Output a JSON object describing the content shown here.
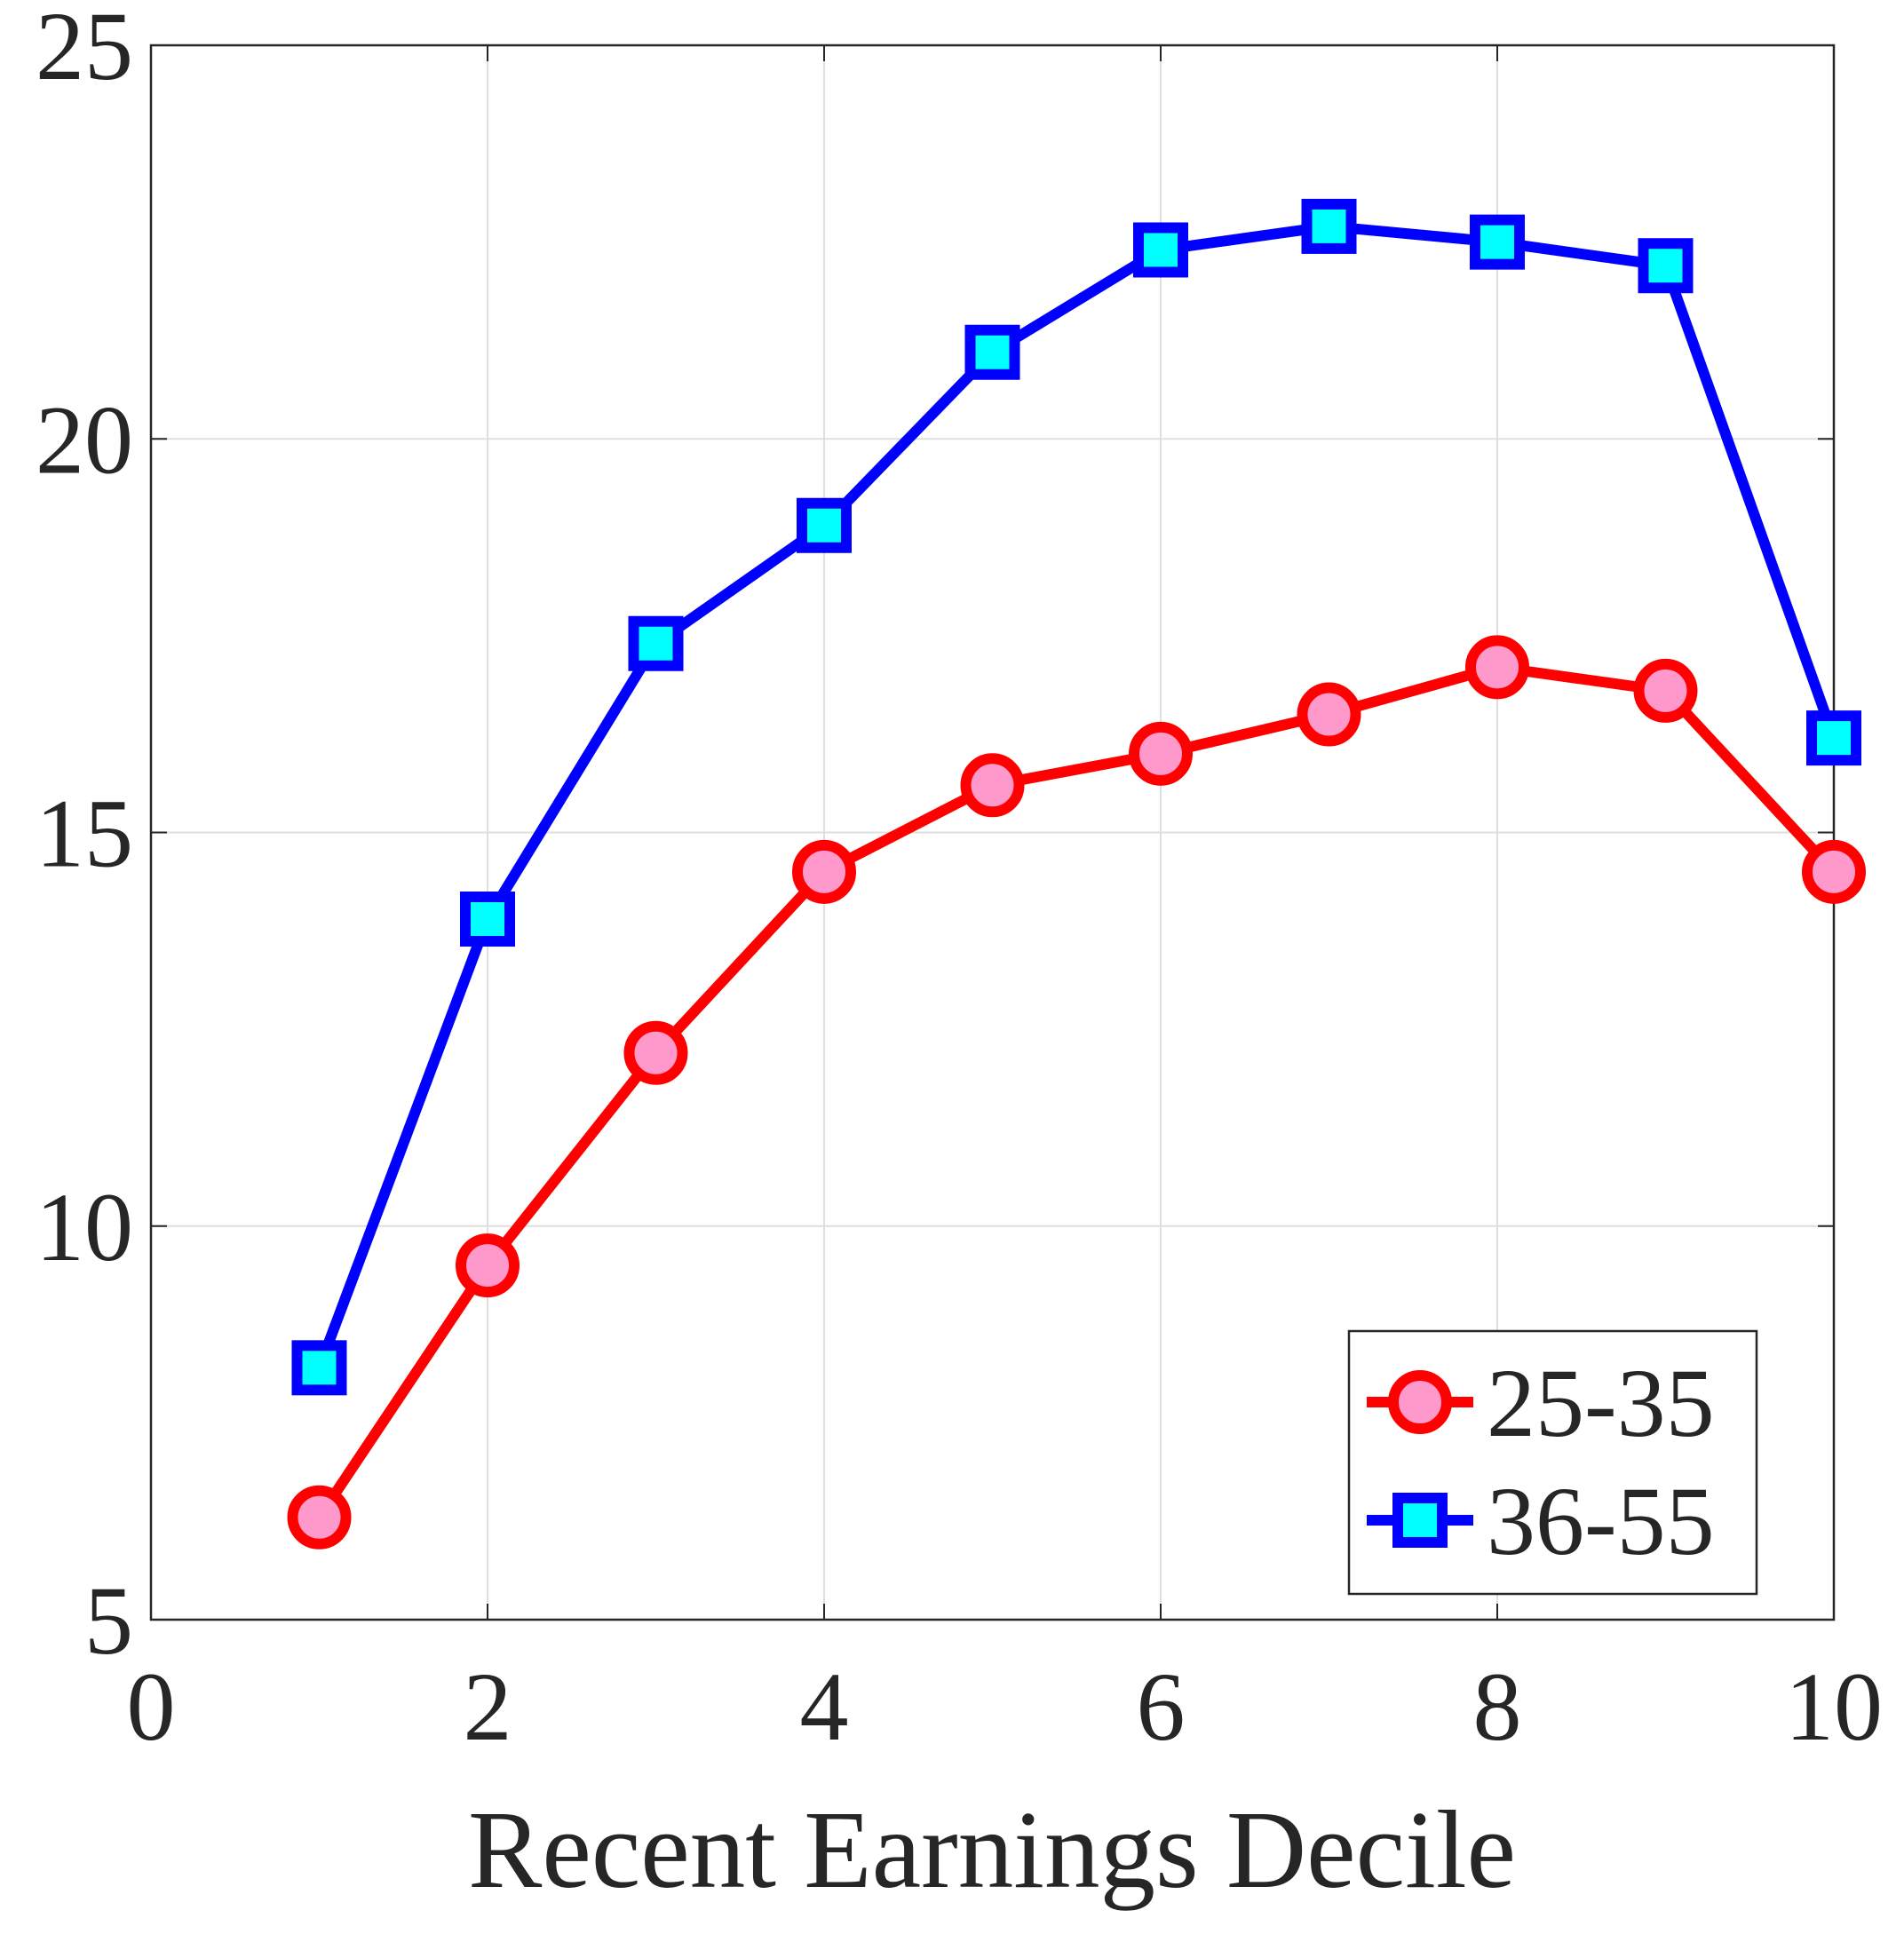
{
  "chart_data": {
    "type": "line",
    "xlabel": "Recent Earnings Decile",
    "x": [
      1,
      2,
      3,
      4,
      5,
      6,
      7,
      8,
      9,
      10
    ],
    "series": [
      {
        "name": "25-35",
        "color": "#ff0000",
        "marker_fill": "#ff99cc",
        "marker": "circle",
        "values": [
          6.3,
          9.5,
          12.2,
          14.5,
          15.6,
          16.0,
          16.5,
          17.1,
          16.8,
          14.5
        ]
      },
      {
        "name": "36-55",
        "color": "#0000ff",
        "marker_fill": "#00ffff",
        "marker": "square",
        "values": [
          8.2,
          13.9,
          17.4,
          18.9,
          21.1,
          22.4,
          22.7,
          22.5,
          22.2,
          16.2
        ]
      }
    ],
    "xlim": [
      0,
      10
    ],
    "xticks": [
      0,
      2,
      4,
      6,
      8,
      10
    ],
    "ylim": [
      5,
      25
    ],
    "yticks": [
      5,
      10,
      15,
      20,
      25
    ],
    "grid": true,
    "legend_position": "lower-right"
  }
}
